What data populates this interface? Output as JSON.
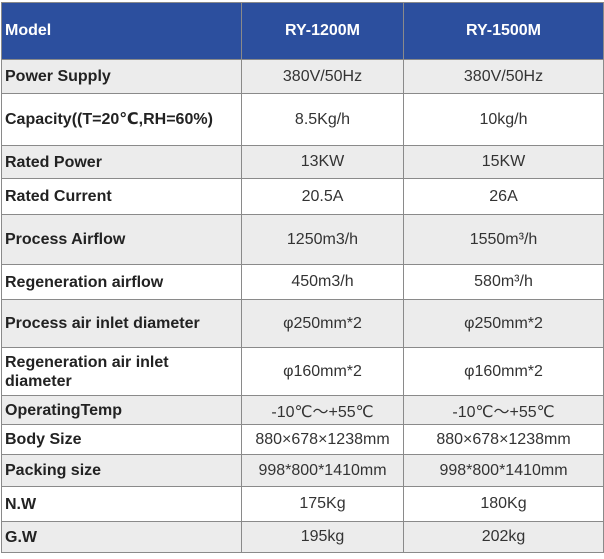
{
  "header": {
    "col0": "Model",
    "col1": "RY-1200M",
    "col2": "RY-1500M"
  },
  "rows": [
    {
      "label": "Power Supply",
      "v1": "380V/50Hz",
      "v2": "380V/50Hz"
    },
    {
      "label": "Capacity((T=20℃,RH=60%)",
      "v1": "8.5Kg/h",
      "v2": "10kg/h"
    },
    {
      "label": "Rated Power",
      "v1": "13KW",
      "v2": "15KW"
    },
    {
      "label": "Rated Current",
      "v1": "20.5A",
      "v2": "26A"
    },
    {
      "label": "Process Airflow",
      "v1": "1250m3/h",
      "v2": "1550m³/h"
    },
    {
      "label": "Regeneration airflow",
      "v1": "450m3/h",
      "v2": "580m³/h"
    },
    {
      "label": "Process air inlet diameter",
      "v1": "φ250mm*2",
      "v2": "φ250mm*2"
    },
    {
      "label": "Regeneration air inlet diameter",
      "v1": "φ160mm*2",
      "v2": "φ160mm*2"
    },
    {
      "label": "OperatingTemp",
      "v1": "-10℃～+55℃",
      "v2": "-10℃～+55℃"
    },
    {
      "label": "Body Size",
      "v1": "880×678×1238mm",
      "v2": "880×678×1238mm"
    },
    {
      "label": "Packing size",
      "v1": "998*800*1410mm",
      "v2": "998*800*1410mm"
    },
    {
      "label": "N.W",
      "v1": "175Kg",
      "v2": "180Kg"
    },
    {
      "label": "G.W",
      "v1": "195kg",
      "v2": "202kg"
    }
  ],
  "colors": {
    "header_bg": "#2c4f9e",
    "header_text": "#ffffff",
    "stripe": "#ececec"
  }
}
